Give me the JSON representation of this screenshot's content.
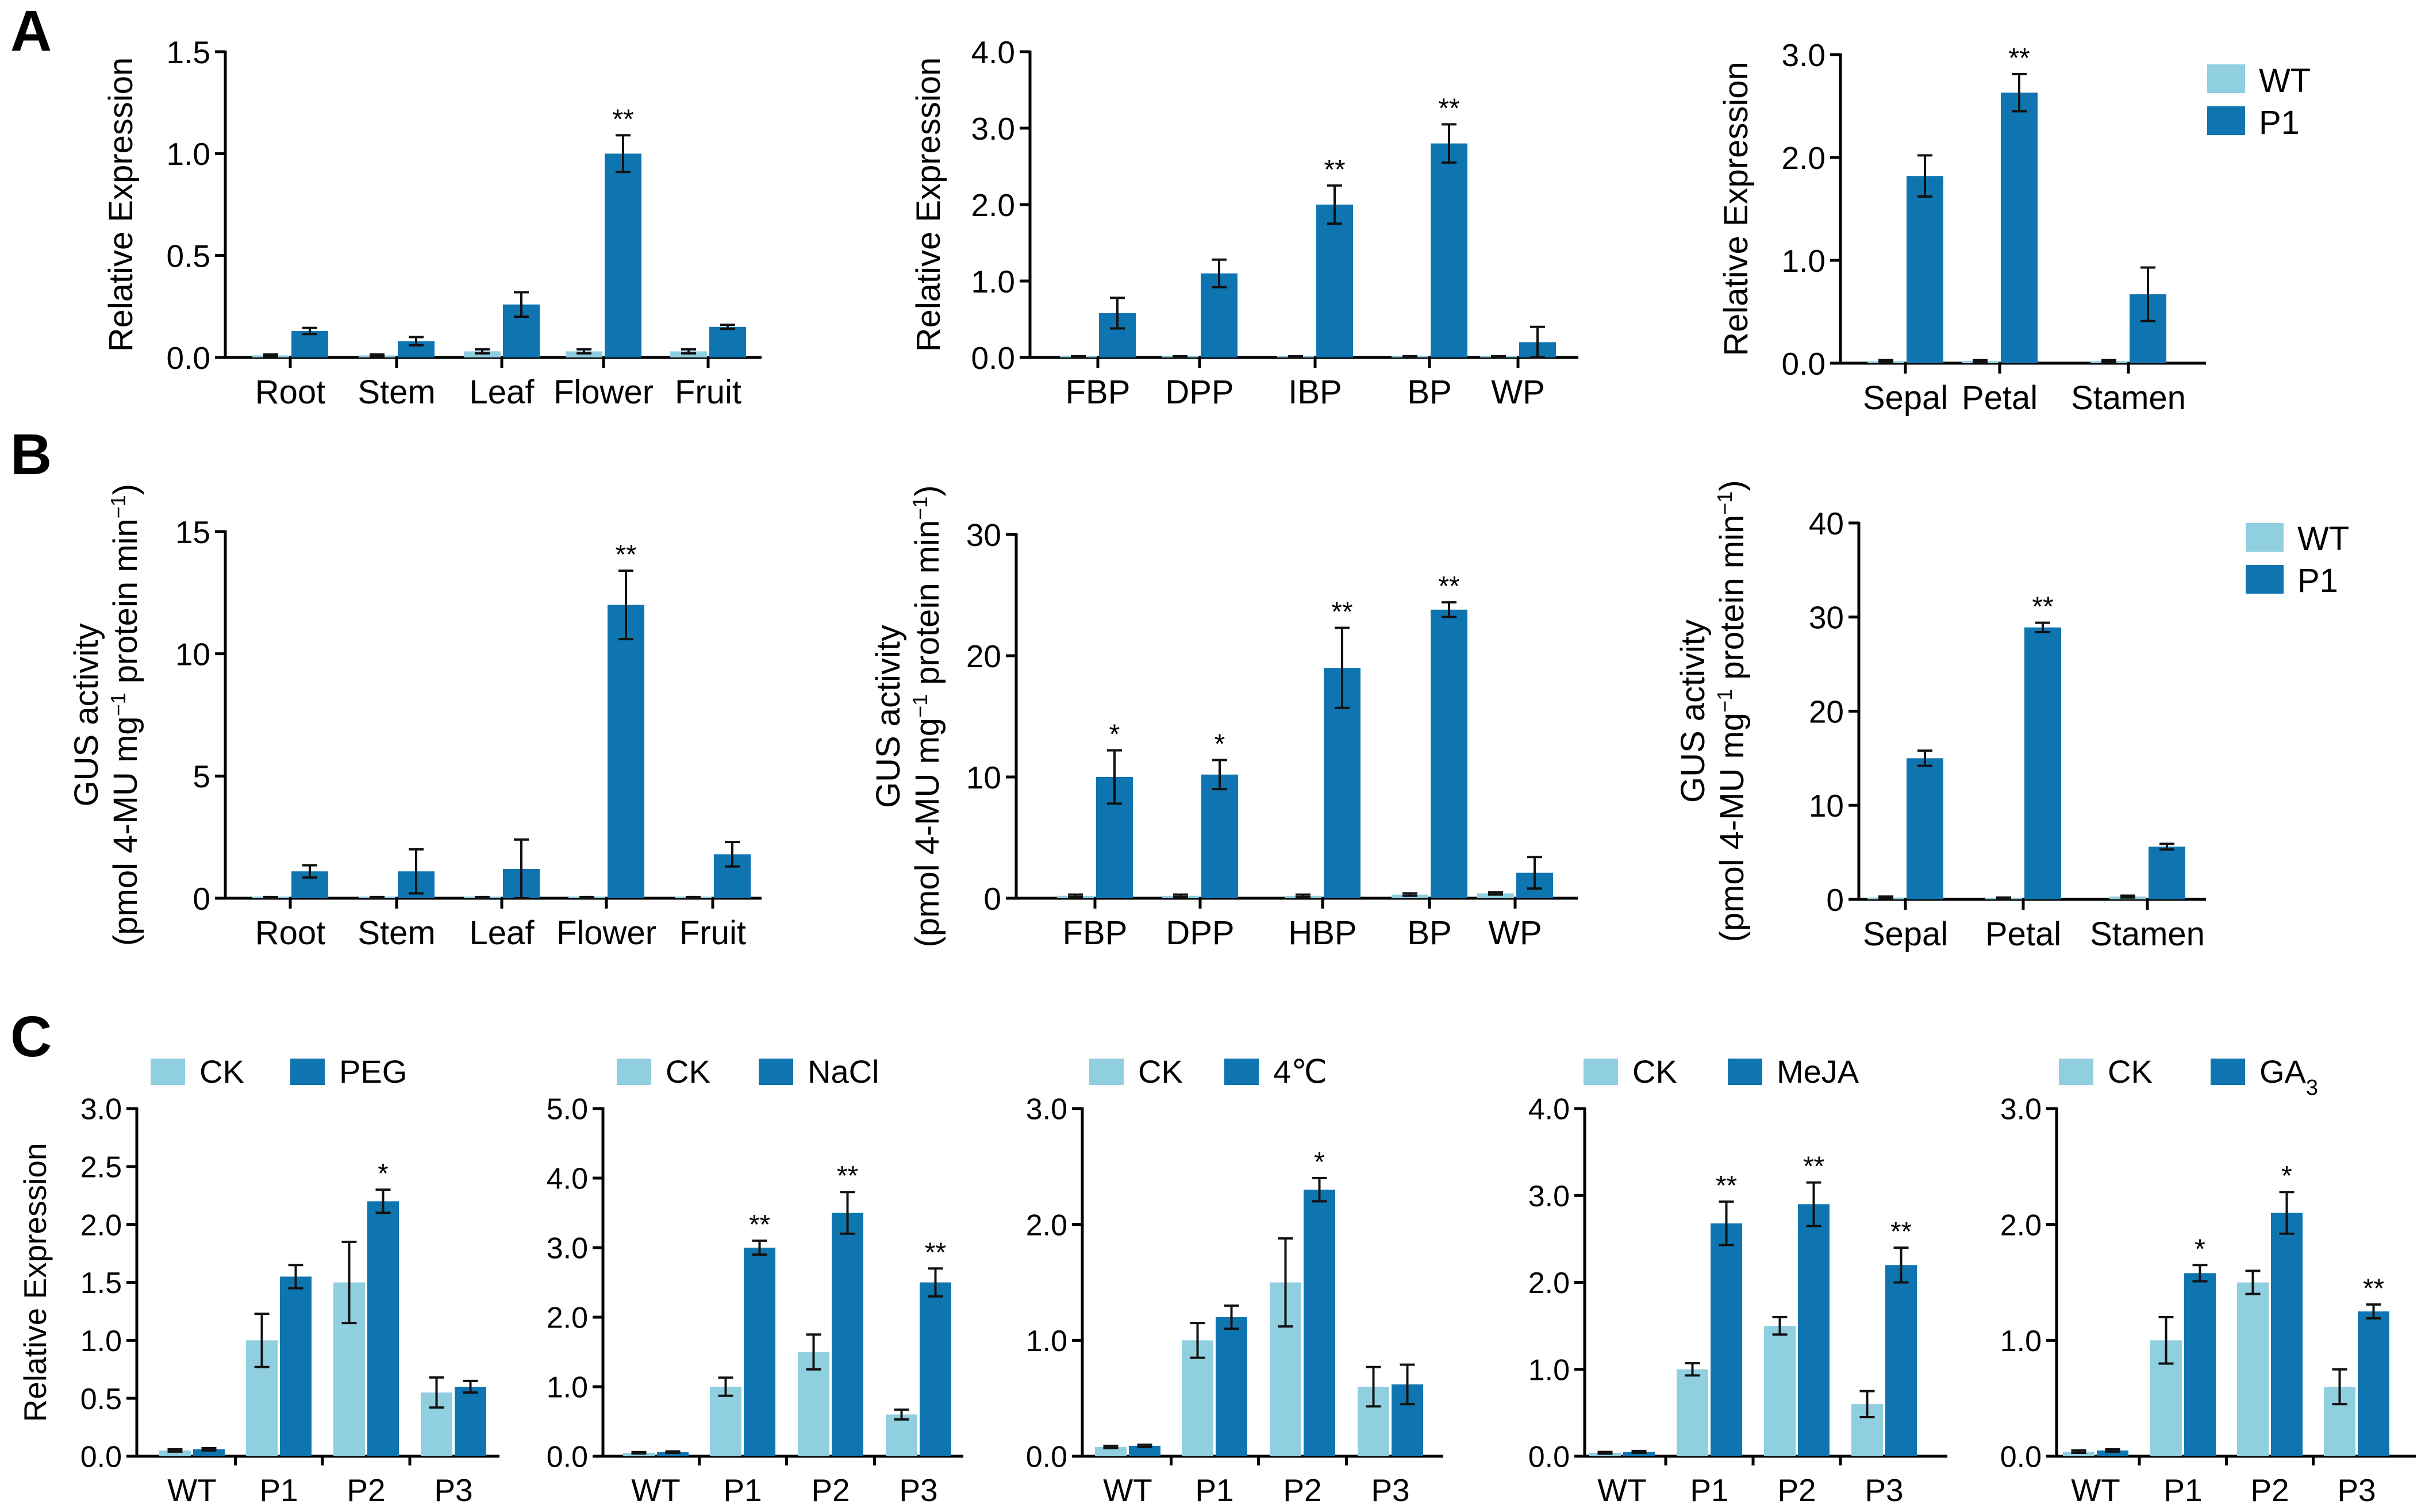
{
  "colors": {
    "wt": "#90CFE0",
    "p1": "#0F75B0",
    "axis": "#000000"
  },
  "panel_labels": [
    "A",
    "B",
    "C"
  ],
  "legend_ab": [
    "WT",
    "P1"
  ],
  "chart_data": [
    {
      "type": "bar",
      "id": "A1",
      "title": "",
      "categories": [
        "Root",
        "Stem",
        "Leaf",
        "Flower",
        "Fruit"
      ],
      "ylabel_lines": [
        "Relative Expression"
      ],
      "yticks": [
        "0.0",
        "0.5",
        "1.0",
        "1.5"
      ],
      "ylim": [
        0,
        1.5
      ],
      "series": [
        {
          "name": "WT",
          "values": [
            0.01,
            0.01,
            0.03,
            0.03,
            0.03
          ],
          "errors": [
            0.005,
            0.005,
            0.01,
            0.01,
            0.01
          ]
        },
        {
          "name": "P1",
          "values": [
            0.13,
            0.08,
            0.26,
            1.0,
            0.15
          ],
          "errors": [
            0.015,
            0.02,
            0.06,
            0.09,
            0.01
          ]
        }
      ],
      "sig": [
        "",
        "",
        "",
        "**",
        ""
      ]
    },
    {
      "type": "bar",
      "id": "A2",
      "title": "",
      "categories": [
        "FBP",
        "DPP",
        "IBP",
        "BP",
        "WP"
      ],
      "ylabel_lines": [
        "Relative Expression"
      ],
      "yticks": [
        "0.0",
        "1.0",
        "2.0",
        "3.0",
        "4.0"
      ],
      "ylim": [
        0,
        4
      ],
      "series": [
        {
          "name": "WT",
          "values": [
            0.01,
            0.01,
            0.01,
            0.01,
            0.01
          ],
          "errors": [
            0.005,
            0.005,
            0.005,
            0.005,
            0.005
          ]
        },
        {
          "name": "P1",
          "values": [
            0.58,
            1.1,
            2.0,
            2.8,
            0.2
          ],
          "errors": [
            0.2,
            0.18,
            0.25,
            0.25,
            0.2
          ]
        }
      ],
      "sig": [
        "",
        "",
        "**",
        "**",
        ""
      ]
    },
    {
      "type": "bar",
      "id": "A3",
      "title": "",
      "categories": [
        "Sepal",
        "Petal",
        "Stamen"
      ],
      "ylabel_lines": [
        "Relative Expression"
      ],
      "yticks": [
        "0.0",
        "1.0",
        "2.0",
        "3.0"
      ],
      "ylim": [
        0,
        3
      ],
      "series": [
        {
          "name": "WT",
          "values": [
            0.02,
            0.02,
            0.02
          ],
          "errors": [
            0.01,
            0.01,
            0.01
          ]
        },
        {
          "name": "P1",
          "values": [
            1.82,
            2.63,
            0.67
          ],
          "errors": [
            0.2,
            0.18,
            0.26
          ]
        }
      ],
      "sig": [
        "",
        "**",
        ""
      ]
    },
    {
      "type": "bar",
      "id": "B1",
      "title": "",
      "categories": [
        "Root",
        "Stem",
        "Leaf",
        "Flower",
        "Fruit"
      ],
      "ylabel_lines": [
        "GUS activity",
        "(pmol 4-MU mg",
        "−1",
        " protein min",
        "−1",
        ")"
      ],
      "yticks": [
        "0",
        "5",
        "10",
        "15"
      ],
      "ylim": [
        0,
        15
      ],
      "series": [
        {
          "name": "WT",
          "values": [
            0.03,
            0.03,
            0.03,
            0.03,
            0.03
          ],
          "errors": [
            0.02,
            0.02,
            0.02,
            0.02,
            0.02
          ]
        },
        {
          "name": "P1",
          "values": [
            1.1,
            1.1,
            1.2,
            12.0,
            1.8
          ],
          "errors": [
            0.25,
            0.9,
            1.2,
            1.4,
            0.5
          ]
        }
      ],
      "sig": [
        "",
        "",
        "",
        "**",
        ""
      ]
    },
    {
      "type": "bar",
      "id": "B2",
      "title": "",
      "categories": [
        "FBP",
        "DPP",
        "HBP",
        "BP",
        "WP"
      ],
      "ylabel_lines": [
        "GUS activity",
        "(pmol 4-MU mg",
        "−1",
        " protein min",
        "−1",
        ")"
      ],
      "yticks": [
        "0",
        "10",
        "20",
        "30"
      ],
      "ylim": [
        0,
        30
      ],
      "series": [
        {
          "name": "WT",
          "values": [
            0.2,
            0.2,
            0.2,
            0.3,
            0.4
          ],
          "errors": [
            0.1,
            0.1,
            0.1,
            0.1,
            0.1
          ]
        },
        {
          "name": "P1",
          "values": [
            10.0,
            10.2,
            19.0,
            23.8,
            2.1
          ],
          "errors": [
            2.2,
            1.2,
            3.3,
            0.6,
            1.3
          ]
        }
      ],
      "sig": [
        "*",
        "*",
        "**",
        "**",
        ""
      ]
    },
    {
      "type": "bar",
      "id": "B3",
      "title": "",
      "categories": [
        "Sepal",
        "Petal",
        "Stamen"
      ],
      "ylabel_lines": [
        "GUS activity",
        "(pmol 4-MU mg",
        "−1",
        " protein min",
        "−1",
        ")"
      ],
      "yticks": [
        "0",
        "10",
        "20",
        "30",
        "40"
      ],
      "ylim": [
        0,
        40
      ],
      "series": [
        {
          "name": "WT",
          "values": [
            0.2,
            0.1,
            0.3
          ],
          "errors": [
            0.1,
            0.1,
            0.1
          ]
        },
        {
          "name": "P1",
          "values": [
            15.0,
            28.9,
            5.6
          ],
          "errors": [
            0.8,
            0.5,
            0.3
          ]
        }
      ],
      "sig": [
        "",
        "**",
        ""
      ]
    },
    {
      "type": "bar",
      "id": "C1",
      "title": "",
      "categories": [
        "WT",
        "P1",
        "P2",
        "P3"
      ],
      "ylabel_lines": [
        "Relative Expression"
      ],
      "yticks": [
        "0.0",
        "0.5",
        "1.0",
        "1.5",
        "2.0",
        "2.5",
        "3.0"
      ],
      "ylim": [
        0,
        3
      ],
      "legend": [
        "CK",
        "PEG"
      ],
      "series": [
        {
          "name": "CK",
          "values": [
            0.05,
            1.0,
            1.5,
            0.55
          ],
          "errors": [
            0.01,
            0.23,
            0.35,
            0.13
          ]
        },
        {
          "name": "PEG",
          "values": [
            0.06,
            1.55,
            2.2,
            0.6
          ],
          "errors": [
            0.01,
            0.1,
            0.1,
            0.05
          ]
        }
      ],
      "sig": [
        "",
        "",
        "*",
        ""
      ]
    },
    {
      "type": "bar",
      "id": "C2",
      "title": "",
      "categories": [
        "WT",
        "P1",
        "P2",
        "P3"
      ],
      "ylabel_lines": [],
      "yticks": [
        "0.0",
        "1.0",
        "2.0",
        "3.0",
        "4.0",
        "5.0"
      ],
      "ylim": [
        0,
        5
      ],
      "legend": [
        "CK",
        "NaCl"
      ],
      "series": [
        {
          "name": "CK",
          "values": [
            0.05,
            1.0,
            1.5,
            0.6
          ],
          "errors": [
            0.01,
            0.13,
            0.25,
            0.07
          ]
        },
        {
          "name": "NaCl",
          "values": [
            0.06,
            3.0,
            3.5,
            2.5
          ],
          "errors": [
            0.01,
            0.1,
            0.3,
            0.2
          ]
        }
      ],
      "sig": [
        "",
        "**",
        "**",
        "**"
      ]
    },
    {
      "type": "bar",
      "id": "C3",
      "title": "",
      "categories": [
        "WT",
        "P1",
        "P2",
        "P3"
      ],
      "ylabel_lines": [],
      "yticks": [
        "0.0",
        "1.0",
        "2.0",
        "3.0"
      ],
      "ylim": [
        0,
        3
      ],
      "legend": [
        "CK",
        "4℃"
      ],
      "series": [
        {
          "name": "CK",
          "values": [
            0.08,
            1.0,
            1.5,
            0.6
          ],
          "errors": [
            0.01,
            0.15,
            0.38,
            0.17
          ]
        },
        {
          "name": "4℃",
          "values": [
            0.09,
            1.2,
            2.3,
            0.62
          ],
          "errors": [
            0.01,
            0.1,
            0.1,
            0.17
          ]
        }
      ],
      "sig": [
        "",
        "",
        "*",
        ""
      ]
    },
    {
      "type": "bar",
      "id": "C4",
      "title": "",
      "categories": [
        "WT",
        "P1",
        "P2",
        "P3"
      ],
      "ylabel_lines": [],
      "yticks": [
        "0.0",
        "1.0",
        "2.0",
        "3.0",
        "4.0"
      ],
      "ylim": [
        0,
        4
      ],
      "legend": [
        "CK",
        "MeJA"
      ],
      "series": [
        {
          "name": "CK",
          "values": [
            0.04,
            1.0,
            1.5,
            0.6
          ],
          "errors": [
            0.01,
            0.07,
            0.1,
            0.15
          ]
        },
        {
          "name": "MeJA",
          "values": [
            0.05,
            2.68,
            2.9,
            2.2
          ],
          "errors": [
            0.01,
            0.25,
            0.25,
            0.2
          ]
        }
      ],
      "sig": [
        "",
        "**",
        "**",
        "**"
      ]
    },
    {
      "type": "bar",
      "id": "C5",
      "title": "",
      "categories": [
        "WT",
        "P1",
        "P2",
        "P3"
      ],
      "ylabel_lines": [],
      "yticks": [
        "0.0",
        "1.0",
        "2.0",
        "3.0"
      ],
      "ylim": [
        0,
        3
      ],
      "legend": [
        "CK",
        "GA",
        "3"
      ],
      "series": [
        {
          "name": "CK",
          "values": [
            0.04,
            1.0,
            1.5,
            0.6
          ],
          "errors": [
            0.01,
            0.2,
            0.1,
            0.15
          ]
        },
        {
          "name": "GA3",
          "values": [
            0.05,
            1.58,
            2.1,
            1.25
          ],
          "errors": [
            0.01,
            0.07,
            0.18,
            0.06
          ]
        }
      ],
      "sig": [
        "",
        "*",
        "*",
        "**"
      ]
    }
  ]
}
